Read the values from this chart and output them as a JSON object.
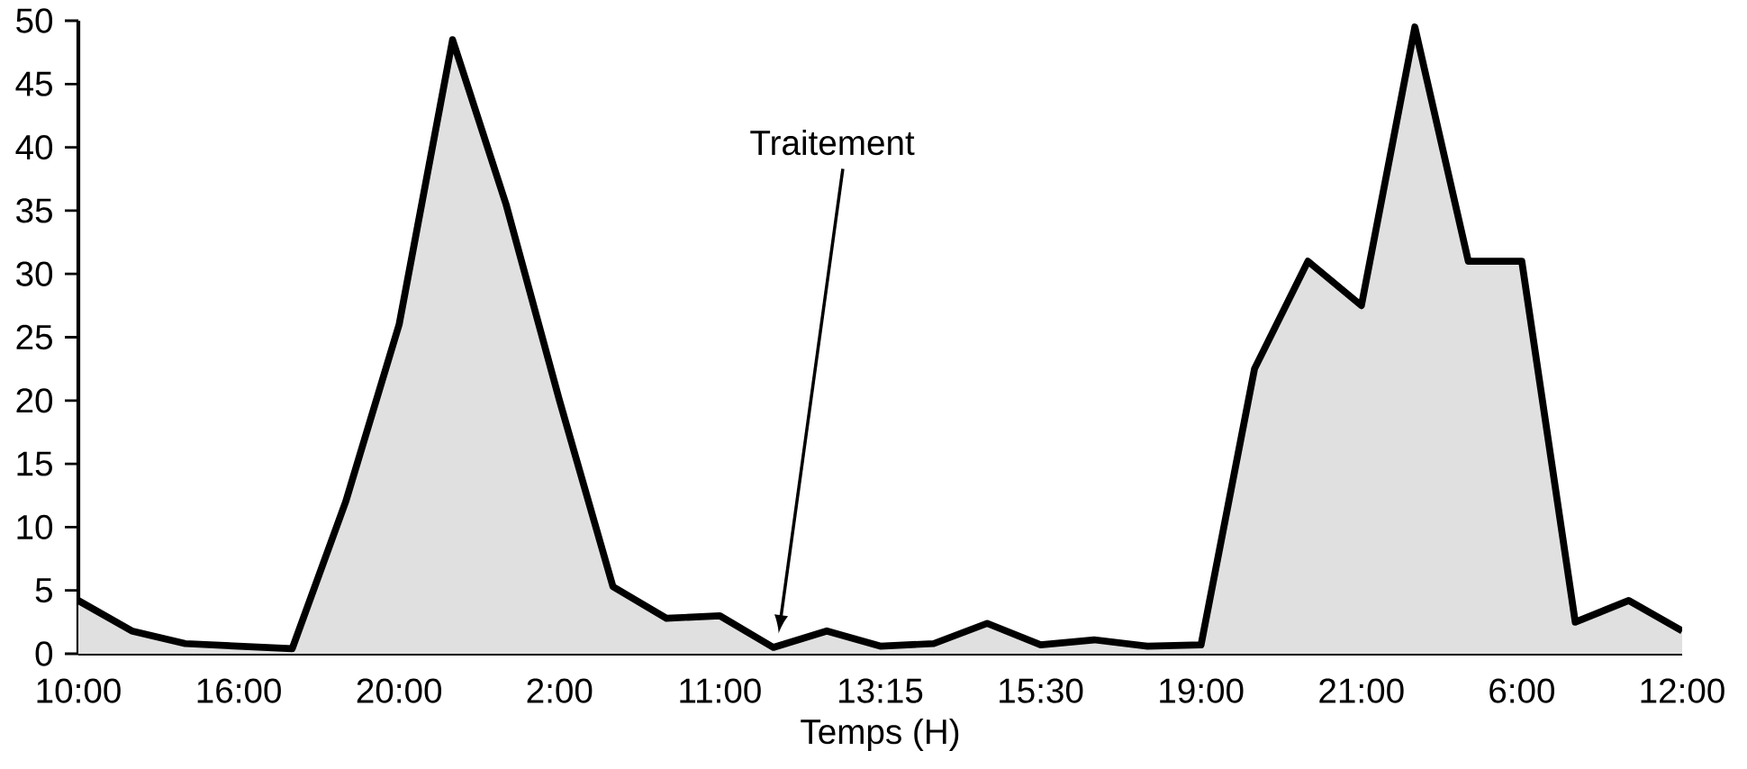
{
  "chart_data": {
    "type": "area",
    "xlabel": "Temps (H)",
    "categories": [
      "10:00",
      null,
      null,
      "16:00",
      null,
      null,
      "20:00",
      null,
      null,
      "2:00",
      null,
      null,
      "11:00",
      null,
      null,
      "13:15",
      null,
      null,
      "15:30",
      null,
      null,
      "19:00",
      null,
      null,
      "21:00",
      null,
      null,
      "6:00",
      null,
      null,
      "12:00"
    ],
    "values": [
      4.2,
      1.8,
      0.8,
      0.6,
      0.4,
      12,
      26,
      48.5,
      35.5,
      20,
      5.3,
      2.8,
      3,
      0.5,
      1.8,
      0.6,
      0.8,
      2.4,
      0.7,
      1.1,
      0.6,
      0.7,
      22.5,
      31,
      27.5,
      49.5,
      31,
      31,
      2.5,
      4.2,
      1.8
    ],
    "color": "#000000",
    "ylim": [
      0,
      50
    ],
    "yticks": [
      0,
      5,
      10,
      15,
      20,
      25,
      30,
      35,
      40,
      45,
      50
    ],
    "annotations": [
      "Traitement"
    ],
    "grid": false
  }
}
